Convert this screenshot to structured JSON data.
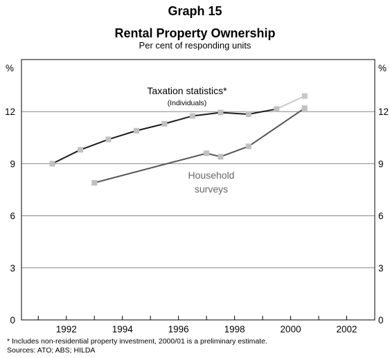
{
  "header": {
    "graph_label": "Graph 15",
    "title": "Rental Property Ownership",
    "subtitle": "Per cent of responding units"
  },
  "footnote": {
    "note": "*    Includes non-residential property investment, 2000/01 is a preliminary estimate.",
    "sources": "Sources: ATO; ABS; HILDA"
  },
  "chart_data": {
    "type": "line",
    "title": "Rental Property Ownership",
    "subtitle": "Per cent of responding units",
    "y_unit_left": "%",
    "y_unit_right": "%",
    "xlim": [
      1990.4,
      2003.0
    ],
    "ylim": [
      0,
      15
    ],
    "x_ticks": [
      1992,
      1994,
      1996,
      1998,
      2000,
      2002
    ],
    "y_ticks": [
      0,
      3,
      6,
      9,
      12
    ],
    "grid": "horizontal",
    "series": [
      {
        "name": "Taxation statistics*",
        "sublabel": "(Individuals)",
        "color": "#1a1a1a",
        "points": [
          {
            "x": 1991.5,
            "y": 9.0
          },
          {
            "x": 1992.5,
            "y": 9.8
          },
          {
            "x": 1993.5,
            "y": 10.4
          },
          {
            "x": 1994.5,
            "y": 10.9
          },
          {
            "x": 1995.5,
            "y": 11.3
          },
          {
            "x": 1996.5,
            "y": 11.75
          },
          {
            "x": 1997.5,
            "y": 11.95
          },
          {
            "x": 1998.5,
            "y": 11.85
          },
          {
            "x": 1999.5,
            "y": 12.15
          }
        ],
        "preliminary": {
          "x": 2000.5,
          "y": 12.9,
          "color": "#c8c8c8"
        }
      },
      {
        "name": "Household surveys",
        "color": "#555555",
        "points": [
          {
            "x": 1993.0,
            "y": 7.9
          },
          {
            "x": 1997.0,
            "y": 9.6
          },
          {
            "x": 1997.5,
            "y": 9.4
          },
          {
            "x": 1998.5,
            "y": 10.0
          },
          {
            "x": 2000.5,
            "y": 12.2
          }
        ]
      }
    ]
  }
}
